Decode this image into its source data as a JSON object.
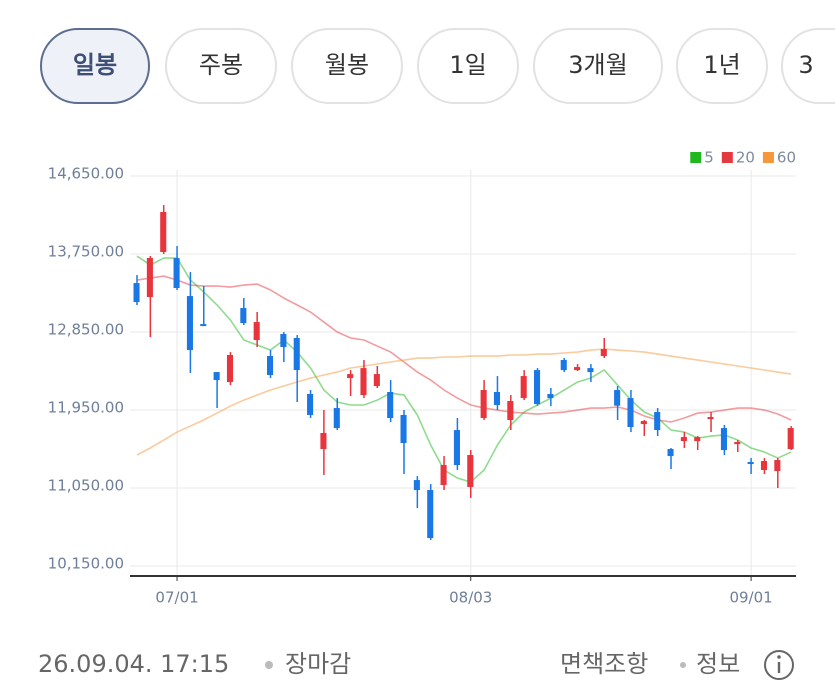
{
  "tabs": [
    "일봉",
    "주봉",
    "월봉",
    "1일",
    "3개월",
    "1년",
    "3"
  ],
  "chart_data": {
    "type": "candlestick",
    "categories": [
      null,
      null,
      null,
      "07/01",
      null,
      null,
      null,
      null,
      null,
      null,
      null,
      null,
      null,
      null,
      null,
      null,
      null,
      null,
      null,
      null,
      null,
      null,
      null,
      null,
      null,
      "08/03",
      null,
      null,
      null,
      null,
      null,
      null,
      null,
      null,
      null,
      null,
      null,
      null,
      null,
      null,
      null,
      null,
      null,
      null,
      null,
      null,
      "09/01",
      null,
      null,
      null
    ],
    "open": [
      13415,
      13254,
      13773,
      13704,
      13265,
      12942,
      12388,
      12273,
      13127,
      12758,
      12573,
      12827,
      12781,
      12135,
      11500,
      11973,
      12319,
      12123,
      12227,
      12158,
      11893,
      11142,
      11027,
      11085,
      11719,
      11062,
      11858,
      12158,
      11835,
      12088,
      12411,
      12135,
      12527,
      12411,
      12434,
      12573,
      12181,
      12088,
      11788,
      11927,
      11500,
      11592,
      11592,
      11858,
      11742,
      11557,
      11350,
      11258,
      11246,
      11500
    ],
    "high": [
      13508,
      13727,
      14315,
      13842,
      13542,
      13381,
      12388,
      12619,
      13242,
      13081,
      12642,
      12850,
      12815,
      12181,
      11950,
      12088,
      12411,
      12527,
      12458,
      12296,
      11950,
      11188,
      11096,
      11419,
      11858,
      11488,
      12296,
      12342,
      12123,
      12411,
      12434,
      12204,
      12550,
      12480,
      12480,
      12781,
      12227,
      12181,
      11835,
      11973,
      11512,
      11696,
      11650,
      11927,
      11777,
      11604,
      11396,
      11396,
      11396,
      11765
    ],
    "low": [
      13161,
      12792,
      13750,
      13335,
      12377,
      12919,
      11973,
      12238,
      12931,
      12677,
      12319,
      12504,
      12042,
      11858,
      11200,
      11719,
      12111,
      12088,
      12204,
      11811,
      11212,
      10819,
      10450,
      11027,
      11258,
      10935,
      11835,
      11950,
      11719,
      12065,
      12000,
      11996,
      12388,
      12400,
      12273,
      12550,
      11835,
      11696,
      11650,
      11650,
      11269,
      11512,
      11488,
      11696,
      11430,
      11465,
      11212,
      11212,
      11050,
      11488
    ],
    "close": [
      13196,
      13704,
      14235,
      13358,
      12642,
      12919,
      12296,
      12585,
      12954,
      12965,
      12354,
      12677,
      12412,
      11893,
      11685,
      11742,
      12365,
      12434,
      12365,
      11858,
      11569,
      11027,
      10473,
      11315,
      11315,
      11431,
      12181,
      12008,
      12054,
      12342,
      12019,
      12088,
      12411,
      12446,
      12388,
      12654,
      12000,
      11754,
      11823,
      11719,
      11419,
      11638,
      11638,
      11869,
      11488,
      11581,
      11327,
      11362,
      11373,
      11742
    ],
    "up_color": "#e8343c",
    "down_color": "#1a78e6",
    "ma_series": [
      {
        "name": "5",
        "color": "#1fb81f",
        "values": [
          13727,
          13623,
          13704,
          13704,
          13450,
          13312,
          13162,
          12988,
          12758,
          12700,
          12642,
          12758,
          12619,
          12435,
          12181,
          12042,
          12008,
          12008,
          12065,
          12146,
          12123,
          11892,
          11546,
          11258,
          11165,
          11119,
          11258,
          11546,
          11777,
          11927,
          12008,
          12088,
          12181,
          12273,
          12319,
          12412,
          12238,
          12065,
          11927,
          11858,
          11719,
          11696,
          11627,
          11650,
          11662,
          11604,
          11512,
          11465,
          11396,
          11465
        ]
      },
      {
        "name": "20",
        "color": "#e53940",
        "values": [
          13450,
          13473,
          13496,
          13450,
          13392,
          13381,
          13381,
          13369,
          13392,
          13404,
          13335,
          13242,
          13162,
          13081,
          12965,
          12850,
          12781,
          12758,
          12688,
          12619,
          12504,
          12388,
          12296,
          12181,
          12088,
          12008,
          11973,
          11950,
          11927,
          11915,
          11904,
          11915,
          11927,
          11950,
          11973,
          11973,
          11985,
          11950,
          11881,
          11835,
          11812,
          11858,
          11915,
          11927,
          11950,
          11973,
          11973,
          11950,
          11904,
          11835
        ]
      },
      {
        "name": "60",
        "color": "#f5973a",
        "values": [
          11431,
          11512,
          11604,
          11696,
          11765,
          11835,
          11915,
          11996,
          12065,
          12123,
          12181,
          12227,
          12273,
          12319,
          12354,
          12388,
          12435,
          12458,
          12481,
          12504,
          12527,
          12550,
          12550,
          12562,
          12562,
          12573,
          12573,
          12573,
          12585,
          12585,
          12596,
          12596,
          12608,
          12619,
          12642,
          12654,
          12642,
          12631,
          12619,
          12596,
          12573,
          12550,
          12527,
          12504,
          12481,
          12458,
          12435,
          12412,
          12388,
          12365
        ]
      }
    ],
    "ylim": [
      10035,
      14985
    ],
    "yticks": [
      {
        "value": 10150,
        "label": "10,150.00"
      },
      {
        "value": 11050,
        "label": "11,050.00"
      },
      {
        "value": 11950,
        "label": "11,950.00"
      },
      {
        "value": 12850,
        "label": "12,850.00"
      },
      {
        "value": 13750,
        "label": "13,750.00"
      },
      {
        "value": 14650,
        "label": "14,650.00"
      }
    ],
    "grid": true
  },
  "footer": {
    "timestamp": "26.09.04. 17:15",
    "status": "장마감",
    "disclaimer": "면책조항",
    "info": "정보"
  }
}
